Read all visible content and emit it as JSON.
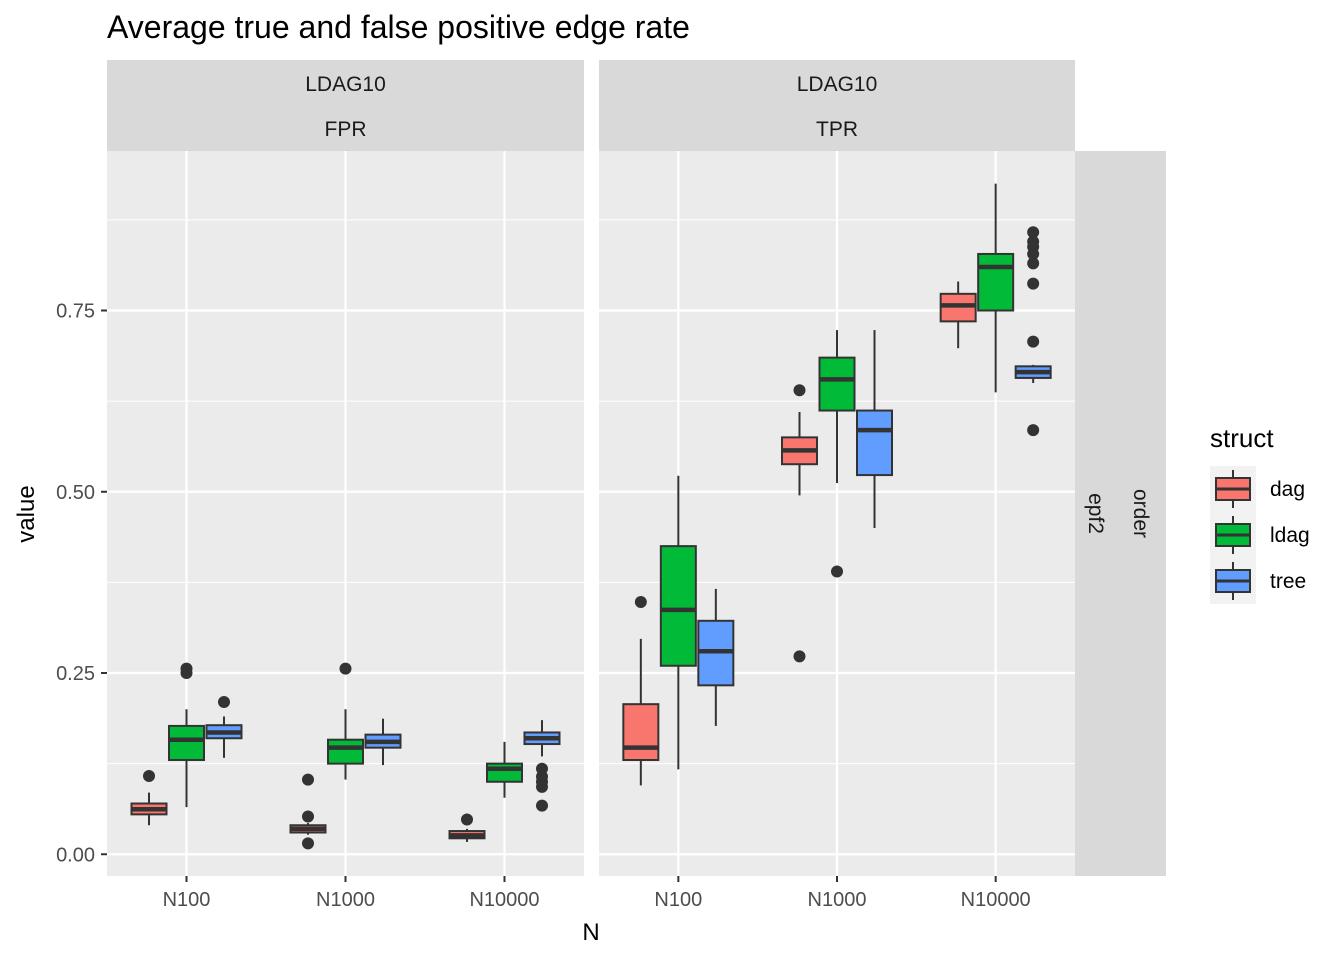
{
  "chart_data": {
    "type": "boxplot",
    "title": "Average true and false positive edge rate",
    "xlabel": "N",
    "ylabel": "value",
    "ylim": [
      -0.03,
      0.97
    ],
    "y_ticks": [
      0.0,
      0.25,
      0.5,
      0.75
    ],
    "y_tick_labels": [
      "0.00",
      "0.25",
      "0.50",
      "0.75"
    ],
    "categories": [
      "N100",
      "N1000",
      "N10000"
    ],
    "grid": true,
    "legend": {
      "title": "struct",
      "position": "right",
      "entries": [
        {
          "name": "dag",
          "color": "#F8766D"
        },
        {
          "name": "ldag",
          "color": "#00BA38"
        },
        {
          "name": "tree",
          "color": "#619CFF"
        }
      ]
    },
    "facet_row_strip": [
      "order",
      "epf2"
    ],
    "facets": [
      {
        "strip": [
          "LDAG10",
          "FPR"
        ],
        "boxes": [
          {
            "category": "N100",
            "struct": "dag",
            "lower_whisker": 0.04,
            "q1": 0.055,
            "median": 0.062,
            "q3": 0.07,
            "upper_whisker": 0.085,
            "outliers": [
              0.108
            ]
          },
          {
            "category": "N100",
            "struct": "ldag",
            "lower_whisker": 0.065,
            "q1": 0.13,
            "median": 0.158,
            "q3": 0.177,
            "upper_whisker": 0.2,
            "outliers": [
              0.25,
              0.256
            ]
          },
          {
            "category": "N100",
            "struct": "tree",
            "lower_whisker": 0.133,
            "q1": 0.16,
            "median": 0.168,
            "q3": 0.178,
            "upper_whisker": 0.19,
            "outliers": [
              0.21
            ]
          },
          {
            "category": "N1000",
            "struct": "dag",
            "lower_whisker": 0.027,
            "q1": 0.03,
            "median": 0.035,
            "q3": 0.04,
            "upper_whisker": 0.043,
            "outliers": [
              0.015,
              0.052,
              0.103
            ]
          },
          {
            "category": "N1000",
            "struct": "ldag",
            "lower_whisker": 0.103,
            "q1": 0.125,
            "median": 0.147,
            "q3": 0.158,
            "upper_whisker": 0.2,
            "outliers": [
              0.256
            ]
          },
          {
            "category": "N1000",
            "struct": "tree",
            "lower_whisker": 0.123,
            "q1": 0.147,
            "median": 0.155,
            "q3": 0.165,
            "upper_whisker": 0.187,
            "outliers": []
          },
          {
            "category": "N10000",
            "struct": "dag",
            "lower_whisker": 0.017,
            "q1": 0.022,
            "median": 0.026,
            "q3": 0.032,
            "upper_whisker": 0.035,
            "outliers": [
              0.048
            ]
          },
          {
            "category": "N10000",
            "struct": "ldag",
            "lower_whisker": 0.078,
            "q1": 0.1,
            "median": 0.118,
            "q3": 0.125,
            "upper_whisker": 0.155,
            "outliers": []
          },
          {
            "category": "N10000",
            "struct": "tree",
            "lower_whisker": 0.135,
            "q1": 0.152,
            "median": 0.16,
            "q3": 0.168,
            "upper_whisker": 0.185,
            "outliers": [
              0.067,
              0.093,
              0.1,
              0.107,
              0.118
            ]
          }
        ]
      },
      {
        "strip": [
          "LDAG10",
          "TPR"
        ],
        "boxes": [
          {
            "category": "N100",
            "struct": "dag",
            "lower_whisker": 0.095,
            "q1": 0.13,
            "median": 0.147,
            "q3": 0.207,
            "upper_whisker": 0.297,
            "outliers": [
              0.348
            ]
          },
          {
            "category": "N100",
            "struct": "ldag",
            "lower_whisker": 0.117,
            "q1": 0.26,
            "median": 0.337,
            "q3": 0.425,
            "upper_whisker": 0.522,
            "outliers": []
          },
          {
            "category": "N100",
            "struct": "tree",
            "lower_whisker": 0.177,
            "q1": 0.233,
            "median": 0.28,
            "q3": 0.322,
            "upper_whisker": 0.366,
            "outliers": []
          },
          {
            "category": "N1000",
            "struct": "dag",
            "lower_whisker": 0.495,
            "q1": 0.538,
            "median": 0.557,
            "q3": 0.575,
            "upper_whisker": 0.61,
            "outliers": [
              0.273,
              0.64
            ]
          },
          {
            "category": "N1000",
            "struct": "ldag",
            "lower_whisker": 0.512,
            "q1": 0.612,
            "median": 0.655,
            "q3": 0.685,
            "upper_whisker": 0.723,
            "outliers": [
              0.39
            ]
          },
          {
            "category": "N1000",
            "struct": "tree",
            "lower_whisker": 0.45,
            "q1": 0.523,
            "median": 0.585,
            "q3": 0.612,
            "upper_whisker": 0.723,
            "outliers": []
          },
          {
            "category": "N10000",
            "struct": "dag",
            "lower_whisker": 0.698,
            "q1": 0.735,
            "median": 0.757,
            "q3": 0.773,
            "upper_whisker": 0.79,
            "outliers": []
          },
          {
            "category": "N10000",
            "struct": "ldag",
            "lower_whisker": 0.637,
            "q1": 0.75,
            "median": 0.81,
            "q3": 0.828,
            "upper_whisker": 0.925,
            "outliers": []
          },
          {
            "category": "N10000",
            "struct": "tree",
            "lower_whisker": 0.65,
            "q1": 0.657,
            "median": 0.665,
            "q3": 0.673,
            "upper_whisker": 0.675,
            "outliers": [
              0.585,
              0.707,
              0.787,
              0.815,
              0.828,
              0.838,
              0.845,
              0.858
            ]
          }
        ]
      }
    ]
  }
}
